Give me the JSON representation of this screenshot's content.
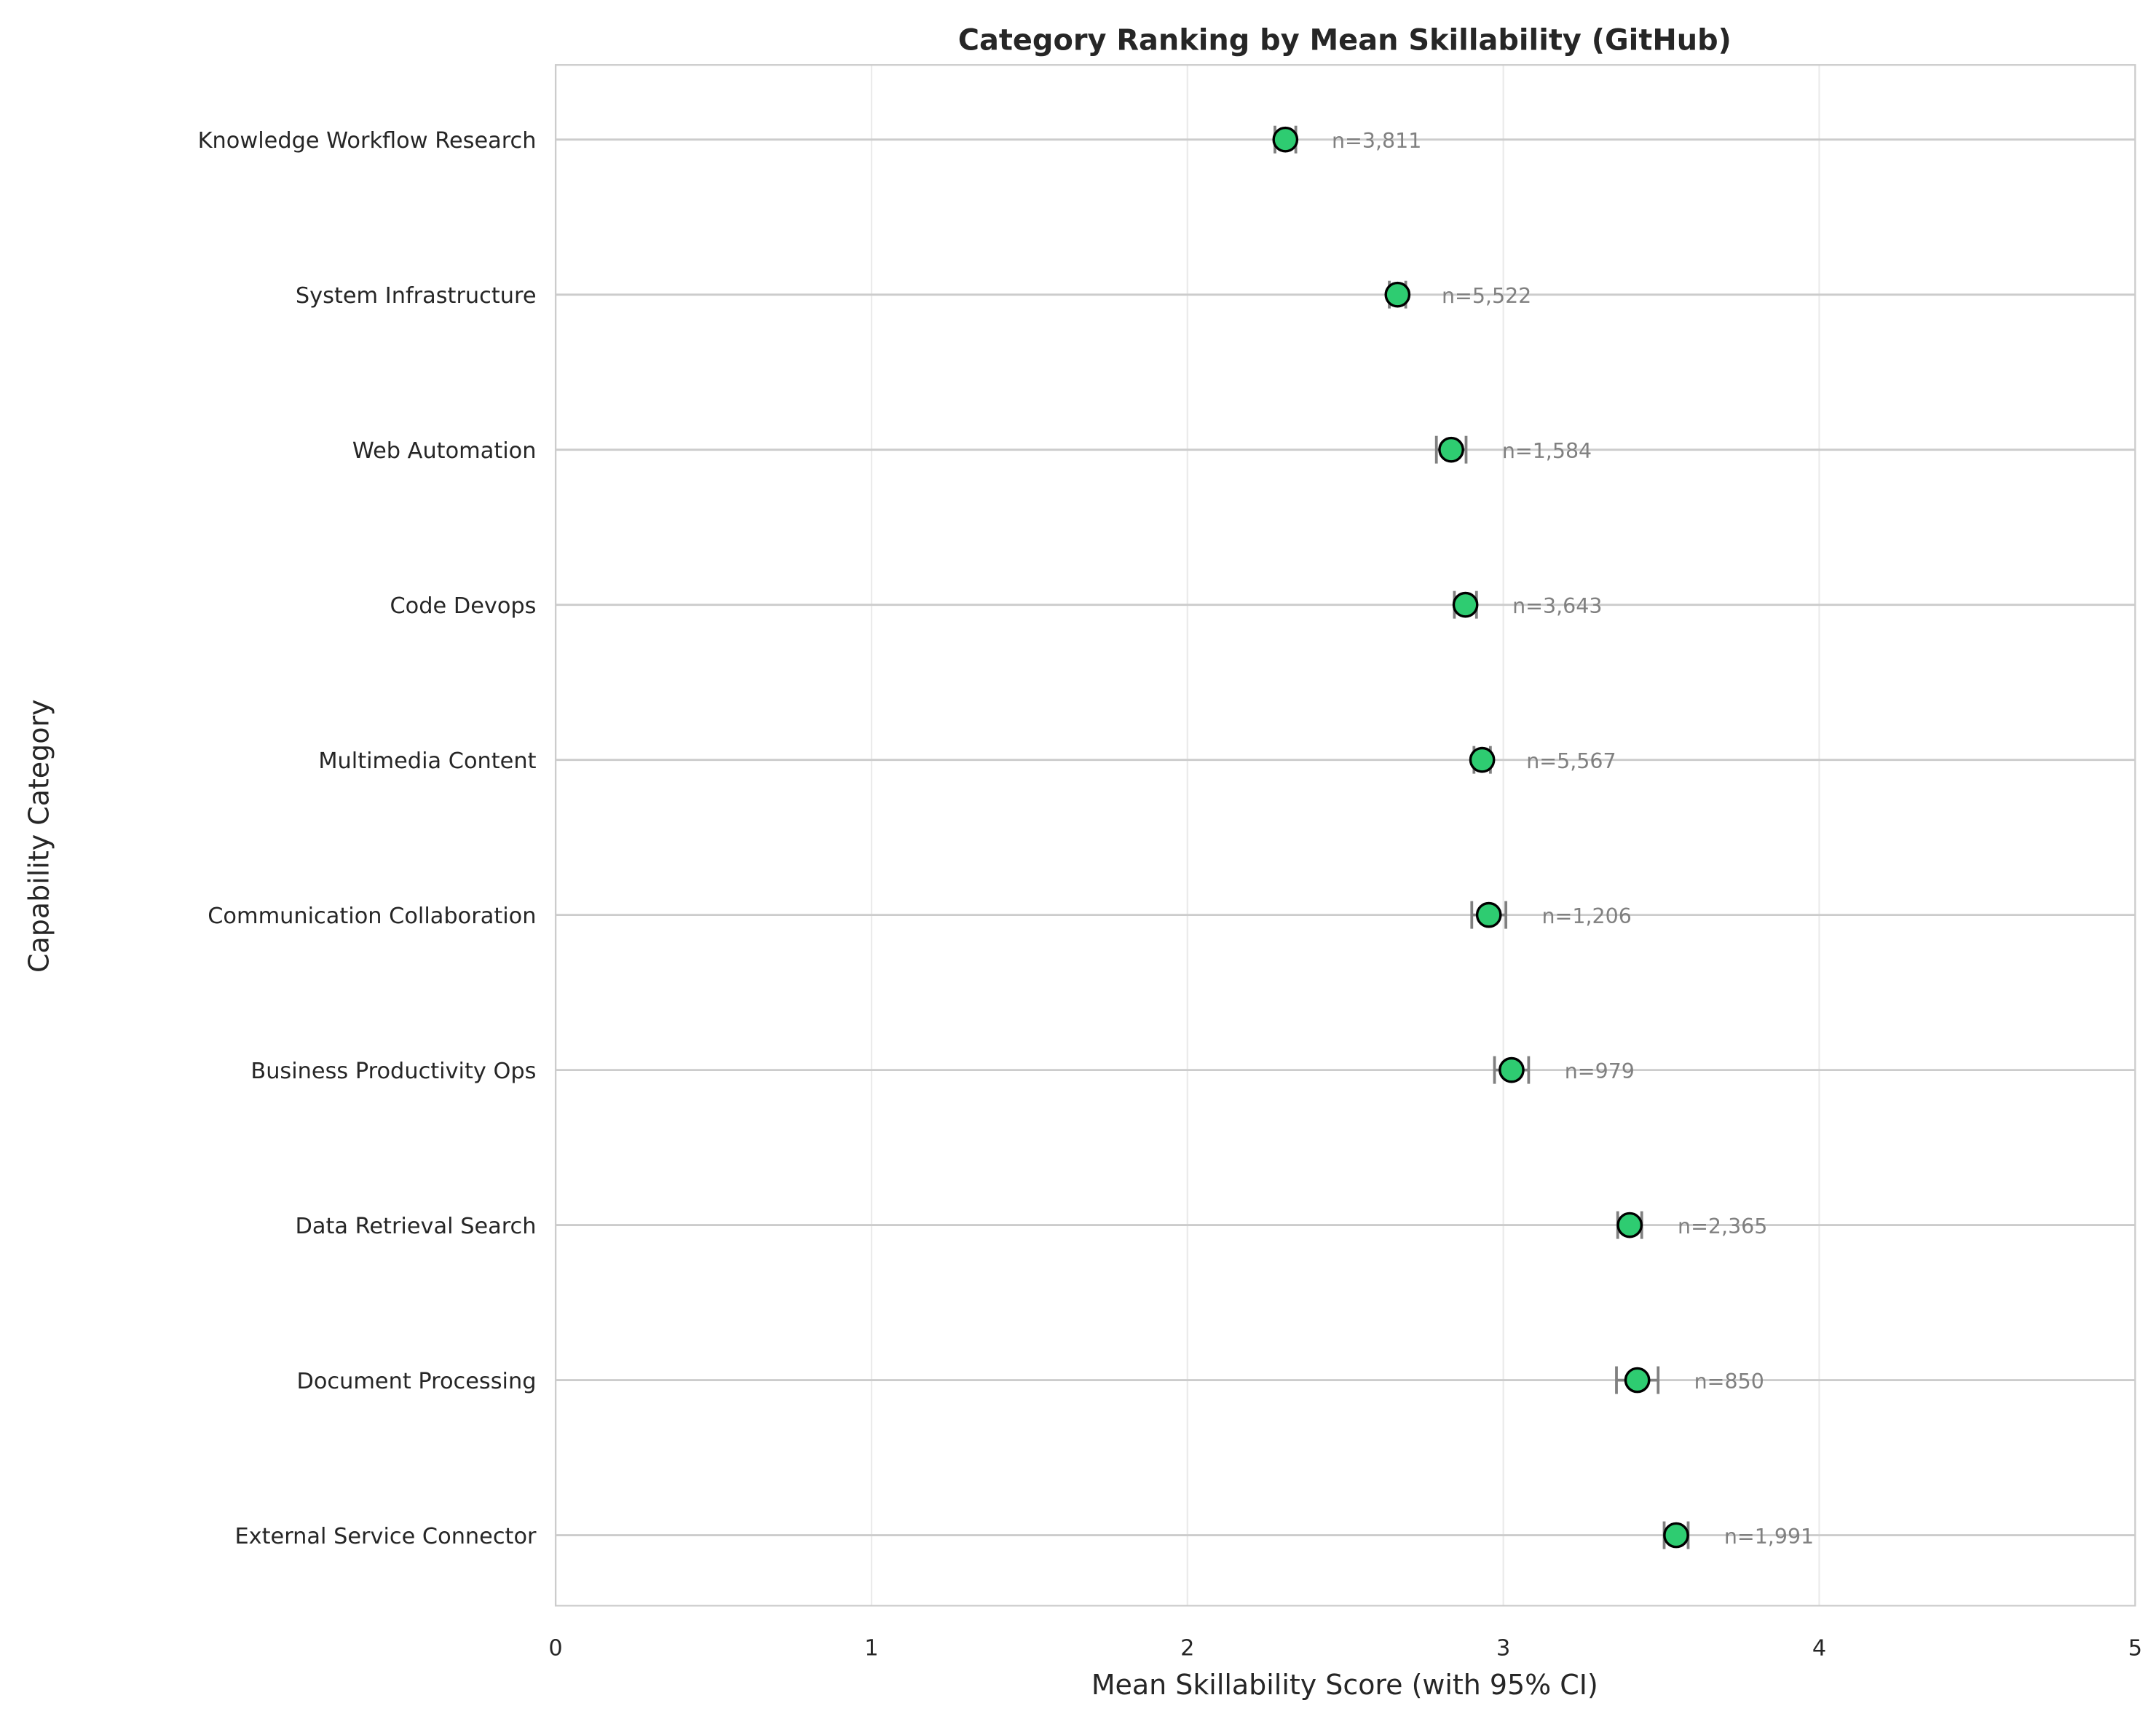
{
  "chart_data": {
    "type": "scatter",
    "title": "Category Ranking by Mean Skillability (GitHub)",
    "xlabel": "Mean Skillability Score (with 95% CI)",
    "ylabel": "Capability Category",
    "xlim": [
      0,
      5
    ],
    "xticks": [
      "0",
      "1",
      "2",
      "3",
      "4",
      "5"
    ],
    "grid": true,
    "marker_color": "#2ecc71",
    "errorbar_color": "#808080",
    "categories": [
      {
        "label": "Knowledge Workflow Research",
        "mean": 2.31,
        "ci": 0.033,
        "n_label": "n=3,811"
      },
      {
        "label": "System Infrastructure",
        "mean": 2.665,
        "ci": 0.026,
        "n_label": "n=5,522"
      },
      {
        "label": "Web Automation",
        "mean": 2.835,
        "ci": 0.047,
        "n_label": "n=1,584"
      },
      {
        "label": "Code Devops",
        "mean": 2.88,
        "ci": 0.035,
        "n_label": "n=3,643"
      },
      {
        "label": "Multimedia Content",
        "mean": 2.933,
        "ci": 0.026,
        "n_label": "n=5,567"
      },
      {
        "label": "Communication Collaboration",
        "mean": 2.954,
        "ci": 0.054,
        "n_label": "n=1,206"
      },
      {
        "label": "Business Productivity Ops",
        "mean": 3.026,
        "ci": 0.054,
        "n_label": "n=979"
      },
      {
        "label": "Data Retrieval Search",
        "mean": 3.4,
        "ci": 0.038,
        "n_label": "n=2,365"
      },
      {
        "label": "Document Processing",
        "mean": 3.424,
        "ci": 0.066,
        "n_label": "n=850"
      },
      {
        "label": "External Service Connector",
        "mean": 3.547,
        "ci": 0.038,
        "n_label": "n=1,991"
      }
    ]
  }
}
